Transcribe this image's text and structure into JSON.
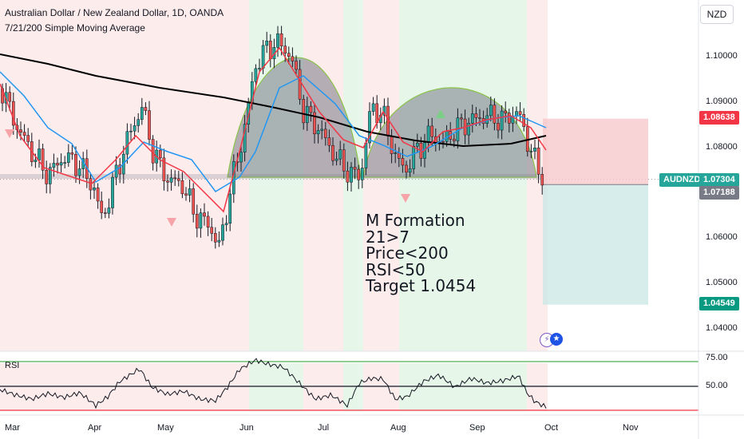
{
  "header": {
    "title": "Australian Dollar / New Zealand Dollar, 1D, OANDA",
    "indicator": "7/21/200 Simple Moving Average"
  },
  "currency_button": "NZD",
  "price_axis": {
    "ticks": [
      "1.10000",
      "1.09000",
      "1.08000",
      "1.06000",
      "1.05000",
      "1.04000"
    ]
  },
  "time_axis": {
    "ticks": [
      "Mar",
      "Apr",
      "May",
      "Jun",
      "Jul",
      "Aug",
      "Sep",
      "Oct",
      "Nov"
    ]
  },
  "price_tags": {
    "stop": "1.08638",
    "symbol": "AUDNZD",
    "last": "1.07304",
    "current": "1.07188",
    "target": "1.04549"
  },
  "annotation": {
    "lines": [
      "M Formation",
      "21>7",
      "Price<200",
      "RSI<50",
      "Target 1.0454"
    ]
  },
  "rsi_pane": {
    "label": "RSI",
    "ticks": [
      "75.00",
      "50.00"
    ]
  },
  "colors": {
    "bull": "#26a69a",
    "bear": "#ef5350",
    "ma7": "#f23645",
    "ma21": "#2196f3",
    "ma200": "#000000",
    "green_zone": "#e6f7e9",
    "red_zone": "#fdecec",
    "position_loss": "#f7c9cc",
    "position_profit": "#cde8e6"
  },
  "chart_data": {
    "type": "line",
    "title": "Australian Dollar / New Zealand Dollar, 1D, OANDA",
    "x": [
      "Mar",
      "Apr",
      "May",
      "Jun",
      "Jul",
      "Aug",
      "Sep",
      "Oct"
    ],
    "series": [
      {
        "name": "7/21/200 Simple Moving Average",
        "values": [
          1.088,
          1.078,
          1.077,
          1.072,
          1.1,
          1.08,
          1.085,
          1.073
        ]
      }
    ],
    "ylim": [
      1.035,
      1.108
    ],
    "position": {
      "entry": 1.07188,
      "stop": 1.08638,
      "target": 1.04549
    },
    "rsi": {
      "levels": [
        30,
        50,
        70
      ],
      "ticks": [
        75,
        50
      ]
    }
  }
}
